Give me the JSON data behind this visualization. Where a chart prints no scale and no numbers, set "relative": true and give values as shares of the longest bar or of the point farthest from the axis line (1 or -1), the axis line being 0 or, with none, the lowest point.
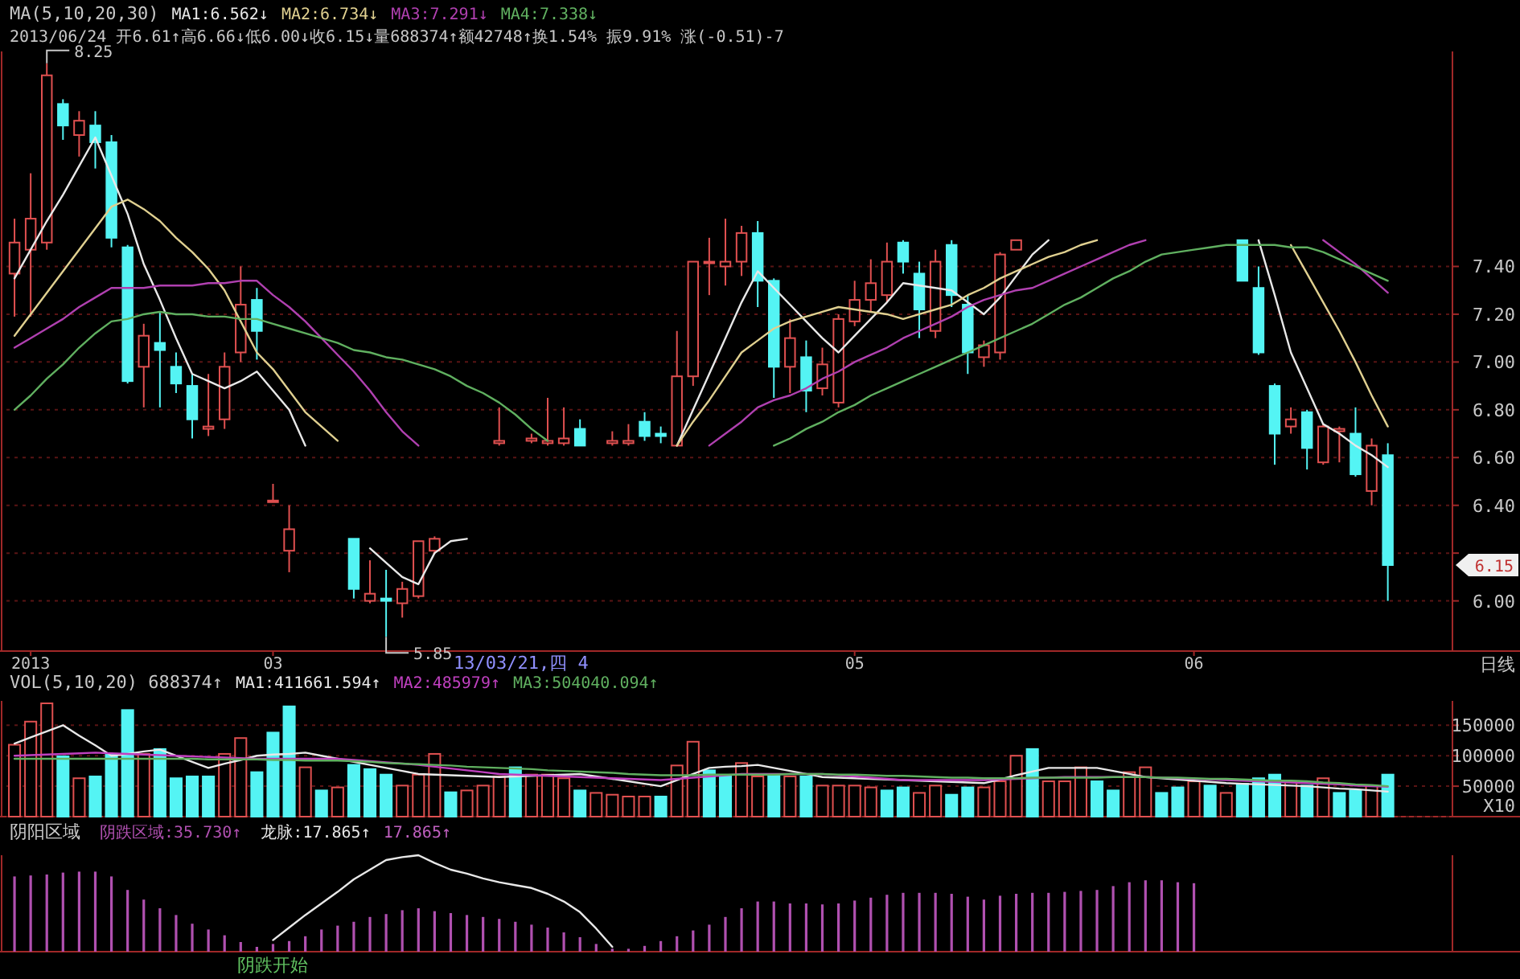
{
  "chart_data": [
    {
      "type": "candlestick",
      "title": "MA(5,10,20,30)",
      "subtitle": "2013/06/24 开6.61↑高6.66↓低6.00↓收6.15↓量688374↑额42748↑换1.54% 振9.91% 涨(-0.51)-7",
      "legend": "top left",
      "grid": "y",
      "categories": [
        null,
        "2013",
        null,
        null,
        null,
        null,
        null,
        null,
        null,
        null,
        null,
        null,
        null,
        null,
        null,
        null,
        "03",
        null,
        null,
        null,
        null,
        null,
        null,
        null,
        null,
        null,
        null,
        null,
        null,
        null,
        null,
        null,
        null,
        null,
        null,
        null,
        null,
        null,
        null,
        null,
        null,
        null,
        null,
        null,
        null,
        null,
        null,
        null,
        null,
        null,
        null,
        null,
        "05",
        null,
        null,
        null,
        null,
        null,
        null,
        null,
        null,
        null,
        null,
        null,
        null,
        null,
        null,
        null,
        null,
        null,
        null,
        null,
        null,
        "06",
        null,
        null,
        null,
        null,
        null,
        null,
        null,
        null,
        null,
        null,
        null,
        null
      ],
      "ohlc": [
        [
          7.37,
          7.6,
          7.19,
          7.5
        ],
        [
          7.47,
          7.79,
          7.19,
          7.6
        ],
        [
          7.5,
          8.25,
          7.47,
          8.2
        ],
        [
          8.08,
          8.1,
          7.93,
          7.99
        ],
        [
          7.95,
          8.05,
          7.86,
          8.01
        ],
        [
          7.99,
          8.05,
          7.81,
          7.92
        ],
        [
          7.92,
          7.95,
          7.48,
          7.52
        ],
        [
          7.48,
          7.49,
          6.91,
          6.92
        ],
        [
          6.98,
          7.16,
          6.81,
          7.11
        ],
        [
          7.08,
          7.21,
          6.81,
          7.05
        ],
        [
          6.98,
          7.04,
          6.87,
          6.91
        ],
        [
          6.9,
          6.95,
          6.68,
          6.76
        ],
        [
          6.72,
          6.95,
          6.69,
          6.73
        ],
        [
          6.76,
          7.04,
          6.72,
          6.98
        ],
        [
          7.04,
          7.4,
          7.0,
          7.24
        ],
        [
          7.26,
          7.31,
          7.01,
          7.13
        ],
        [
          6.42,
          6.49,
          6.42,
          6.42
        ],
        [
          6.21,
          6.4,
          6.12,
          6.3
        ],
        null,
        null,
        null,
        [
          6.26,
          6.26,
          6.01,
          6.05
        ],
        [
          6.0,
          6.17,
          5.99,
          6.03
        ],
        [
          6.01,
          6.13,
          5.85,
          6.0
        ],
        [
          5.99,
          6.08,
          5.93,
          6.05
        ],
        [
          6.02,
          6.25,
          6.01,
          6.25
        ],
        [
          6.21,
          6.27,
          6.2,
          6.26
        ],
        null,
        null,
        null,
        [
          6.66,
          6.81,
          6.65,
          6.67
        ],
        null,
        [
          6.67,
          6.7,
          6.66,
          6.68
        ],
        [
          6.66,
          6.85,
          6.65,
          6.67
        ],
        [
          6.66,
          6.81,
          6.65,
          6.68
        ],
        [
          6.72,
          6.76,
          6.65,
          6.65
        ],
        null,
        [
          6.66,
          6.71,
          6.65,
          6.67
        ],
        [
          6.66,
          6.74,
          6.65,
          6.67
        ],
        [
          6.75,
          6.79,
          6.67,
          6.69
        ],
        [
          6.7,
          6.73,
          6.66,
          6.69
        ],
        [
          6.65,
          7.13,
          6.65,
          6.94
        ],
        [
          6.94,
          7.42,
          6.9,
          7.42
        ],
        [
          7.42,
          7.52,
          7.28,
          7.42
        ],
        [
          7.4,
          7.6,
          7.32,
          7.42
        ],
        [
          7.42,
          7.57,
          7.36,
          7.54
        ],
        [
          7.54,
          7.59,
          7.23,
          7.34
        ],
        [
          7.34,
          7.35,
          6.85,
          6.98
        ],
        [
          6.98,
          7.18,
          6.87,
          7.1
        ],
        [
          7.02,
          7.09,
          6.79,
          6.88
        ],
        [
          6.89,
          7.06,
          6.86,
          6.99
        ],
        [
          6.83,
          7.2,
          6.81,
          7.18
        ],
        [
          7.17,
          7.34,
          7.15,
          7.26
        ],
        [
          7.26,
          7.43,
          7.21,
          7.33
        ],
        [
          7.28,
          7.5,
          7.25,
          7.42
        ],
        [
          7.5,
          7.51,
          7.37,
          7.42
        ],
        [
          7.37,
          7.42,
          7.1,
          7.22
        ],
        [
          7.13,
          7.47,
          7.1,
          7.42
        ],
        [
          7.49,
          7.51,
          7.23,
          7.28
        ],
        [
          7.24,
          7.28,
          6.95,
          7.04
        ],
        [
          7.02,
          7.09,
          6.98,
          7.07
        ],
        [
          7.04,
          7.46,
          7.01,
          7.45
        ],
        [
          7.47,
          7.51,
          7.47,
          7.51
        ],
        null,
        null,
        null,
        null,
        null,
        null,
        null,
        null,
        null,
        null,
        null,
        null,
        null,
        [
          7.51,
          7.51,
          7.34,
          7.34
        ],
        [
          7.31,
          7.4,
          7.03,
          7.04
        ],
        [
          6.9,
          6.91,
          6.57,
          6.7
        ],
        [
          6.73,
          6.81,
          6.7,
          6.76
        ],
        [
          6.79,
          6.8,
          6.55,
          6.64
        ],
        [
          6.58,
          6.74,
          6.57,
          6.73
        ],
        [
          6.71,
          6.73,
          6.58,
          6.72
        ],
        [
          6.7,
          6.81,
          6.52,
          6.53
        ],
        [
          6.46,
          6.68,
          6.4,
          6.65
        ],
        [
          6.61,
          6.66,
          6.0,
          6.15
        ]
      ],
      "colors": [
        "#e05050",
        "#e05050",
        "#e05050",
        "#54f4f4",
        "#e05050",
        "#54f4f4",
        "#54f4f4",
        "#54f4f4",
        "#e05050",
        "#54f4f4",
        "#54f4f4",
        "#54f4f4",
        "#e05050",
        "#e05050",
        "#e05050",
        "#54f4f4",
        "#e05050",
        "#e05050",
        null,
        null,
        null,
        "#54f4f4",
        "#e05050",
        "#54f4f4",
        "#e05050",
        "#e05050",
        "#e05050",
        null,
        null,
        null,
        "#e05050",
        null,
        "#e05050",
        "#e05050",
        "#e05050",
        "#54f4f4",
        null,
        "#e05050",
        "#e05050",
        "#54f4f4",
        "#54f4f4",
        "#e05050",
        "#e05050",
        "#e05050",
        "#e05050",
        "#e05050",
        "#54f4f4",
        "#54f4f4",
        "#e05050",
        "#54f4f4",
        "#e05050",
        "#e05050",
        "#e05050",
        "#e05050",
        "#e05050",
        "#54f4f4",
        "#54f4f4",
        "#e05050",
        "#54f4f4",
        "#54f4f4",
        "#e05050",
        "#e05050",
        "#e05050",
        null,
        null,
        null,
        null,
        null,
        null,
        null,
        null,
        null,
        null,
        null,
        null,
        null,
        "#54f4f4",
        "#54f4f4",
        "#54f4f4",
        "#e05050",
        "#54f4f4",
        "#e05050",
        "#e05050",
        "#54f4f4",
        "#e05050",
        "#54f4f4"
      ],
      "series": [
        {
          "type": "line",
          "name": "MA1:6.562↓",
          "color": "#e8e8e8",
          "values": [
            7.35,
            7.47,
            7.59,
            7.7,
            7.82,
            7.94,
            7.78,
            7.62,
            7.41,
            7.26,
            7.1,
            6.95,
            6.92,
            6.89,
            6.92,
            6.96,
            6.88,
            6.8,
            6.65,
            null,
            null,
            null,
            6.22,
            6.16,
            6.1,
            6.07,
            6.2,
            6.25,
            6.26,
            null,
            null,
            null,
            null,
            null,
            null,
            null,
            null,
            null,
            null,
            null,
            null,
            6.65,
            6.8,
            6.95,
            7.1,
            7.25,
            7.38,
            7.31,
            7.24,
            7.17,
            7.1,
            7.04,
            7.11,
            7.18,
            7.25,
            7.33,
            7.32,
            7.31,
            7.3,
            7.25,
            7.2,
            7.27,
            7.36,
            7.45,
            7.51,
            null,
            null,
            null,
            null,
            null,
            null,
            null,
            null,
            null,
            null,
            null,
            null,
            7.51,
            7.28,
            7.04,
            6.89,
            6.74,
            6.7,
            6.65,
            6.61,
            6.56
          ]
        },
        {
          "type": "line",
          "name": "MA2:6.734↓",
          "color": "#e0d090",
          "values": [
            7.11,
            7.2,
            7.29,
            7.38,
            7.47,
            7.56,
            7.65,
            7.68,
            7.64,
            7.59,
            7.52,
            7.46,
            7.39,
            7.3,
            7.17,
            7.04,
            6.97,
            6.88,
            6.79,
            6.73,
            6.67,
            null,
            null,
            null,
            null,
            null,
            null,
            null,
            null,
            null,
            null,
            null,
            null,
            null,
            null,
            null,
            null,
            null,
            null,
            null,
            null,
            6.65,
            6.75,
            6.84,
            6.94,
            7.04,
            7.09,
            7.14,
            7.17,
            7.19,
            7.21,
            7.23,
            7.22,
            7.21,
            7.2,
            7.18,
            7.2,
            7.22,
            7.24,
            7.28,
            7.31,
            7.35,
            7.38,
            7.41,
            7.44,
            7.46,
            7.49,
            7.51,
            null,
            null,
            null,
            null,
            null,
            null,
            null,
            null,
            null,
            null,
            null,
            7.49,
            7.37,
            7.25,
            7.13,
            7.0,
            6.86,
            6.73
          ]
        },
        {
          "type": "line",
          "name": "MA3:7.291↓",
          "color": "#b040b0",
          "values": [
            7.06,
            7.1,
            7.14,
            7.18,
            7.23,
            7.27,
            7.31,
            7.31,
            7.31,
            7.32,
            7.32,
            7.32,
            7.33,
            7.33,
            7.34,
            7.34,
            7.28,
            7.23,
            7.17,
            7.1,
            7.03,
            6.96,
            6.88,
            6.79,
            6.71,
            6.65,
            null,
            null,
            null,
            null,
            null,
            null,
            null,
            null,
            null,
            null,
            null,
            null,
            null,
            null,
            null,
            null,
            null,
            6.65,
            6.7,
            6.75,
            6.81,
            6.84,
            6.86,
            6.89,
            6.93,
            6.96,
            7.0,
            7.03,
            7.06,
            7.1,
            7.13,
            7.16,
            7.19,
            7.23,
            7.26,
            7.28,
            7.3,
            7.31,
            7.34,
            7.37,
            7.4,
            7.43,
            7.46,
            7.49,
            7.51,
            null,
            null,
            null,
            null,
            null,
            null,
            null,
            null,
            null,
            null,
            7.51,
            7.46,
            7.41,
            7.35,
            7.29
          ]
        },
        {
          "type": "line",
          "name": "MA4:7.338↓",
          "color": "#60b060",
          "values": [
            6.8,
            6.86,
            6.93,
            6.99,
            7.06,
            7.12,
            7.17,
            7.18,
            7.2,
            7.21,
            7.2,
            7.2,
            7.19,
            7.19,
            7.18,
            7.18,
            7.16,
            7.14,
            7.12,
            7.1,
            7.08,
            7.05,
            7.04,
            7.02,
            7.01,
            6.99,
            6.97,
            6.94,
            6.9,
            6.87,
            6.83,
            6.78,
            6.72,
            6.67,
            null,
            null,
            null,
            null,
            null,
            null,
            null,
            null,
            null,
            null,
            null,
            null,
            null,
            6.65,
            6.68,
            6.72,
            6.75,
            6.79,
            6.82,
            6.86,
            6.89,
            6.92,
            6.95,
            6.98,
            7.01,
            7.04,
            7.07,
            7.1,
            7.13,
            7.16,
            7.2,
            7.24,
            7.27,
            7.31,
            7.35,
            7.38,
            7.42,
            7.45,
            7.46,
            7.47,
            7.48,
            7.49,
            7.49,
            7.49,
            7.49,
            7.48,
            7.48,
            7.46,
            7.43,
            7.4,
            7.37,
            7.34
          ]
        }
      ],
      "ylim": [
        5.79,
        8.3
      ],
      "yticks": [
        {
          "value": 6,
          "label": "6.00"
        },
        {
          "value": 6.2,
          "label": null
        },
        {
          "value": 6.4,
          "label": "6.40"
        },
        {
          "value": 6.6,
          "label": "6.60"
        },
        {
          "value": 6.8,
          "label": "6.80"
        },
        {
          "value": 7,
          "label": "7.00"
        },
        {
          "value": 7.2,
          "label": "7.20"
        },
        {
          "value": 7.4,
          "label": "7.40"
        }
      ],
      "annotations": [
        "8.25",
        "5.85",
        "6.15",
        "13/03/21,四 4",
        "日线"
      ]
    },
    {
      "type": "bar",
      "title": "VOL(5,10,20) 688374↑",
      "legend": "top left",
      "grid": "y",
      "tick_labels": "y",
      "categories": [
        null,
        null,
        null,
        null,
        null,
        null,
        null,
        null,
        null,
        null,
        null,
        null,
        null,
        null,
        null,
        null,
        null,
        null,
        null,
        null,
        null,
        null,
        null,
        null,
        null,
        null,
        null,
        null,
        null,
        null,
        null,
        null,
        null,
        null,
        null,
        null,
        null,
        null,
        null,
        null,
        null,
        null,
        null,
        null,
        null,
        null,
        null,
        null,
        null,
        null,
        null,
        null,
        null,
        null,
        null,
        null,
        null,
        null,
        null,
        null,
        null,
        null,
        null,
        null,
        null,
        null,
        null,
        null,
        null,
        null,
        null,
        null,
        null,
        null,
        null,
        null,
        null,
        null,
        null,
        null,
        null,
        null,
        null,
        null,
        null,
        null
      ],
      "values": [
        118000,
        156000,
        186000,
        99000,
        63000,
        66000,
        103000,
        175000,
        103000,
        111000,
        63000,
        66000,
        66000,
        103000,
        129000,
        73000,
        138000,
        181000,
        81000,
        43000,
        48000,
        85000,
        78000,
        69000,
        51000,
        69000,
        103000,
        40000,
        43000,
        51000,
        66000,
        81000,
        69000,
        69000,
        63000,
        43000,
        39000,
        36000,
        33000,
        33000,
        33000,
        84000,
        123000,
        76000,
        66000,
        88000,
        66000,
        69000,
        66000,
        66000,
        51000,
        51000,
        51000,
        48000,
        43000,
        48000,
        39000,
        51000,
        36000,
        48000,
        48000,
        58000,
        100000,
        111000,
        58000,
        58000,
        81000,
        58000,
        43000,
        73000,
        81000,
        39000,
        48000,
        58000,
        51000,
        39000,
        54000,
        63000,
        69000,
        58000,
        51000,
        63000,
        39000,
        43000,
        51000,
        69000
      ],
      "colors": [
        "#e05050",
        "#e05050",
        "#e05050",
        "#54f4f4",
        "#e05050",
        "#54f4f4",
        "#54f4f4",
        "#54f4f4",
        "#e05050",
        "#54f4f4",
        "#54f4f4",
        "#54f4f4",
        "#54f4f4",
        "#e05050",
        "#e05050",
        "#54f4f4",
        "#54f4f4",
        "#54f4f4",
        "#e05050",
        "#54f4f4",
        "#e05050",
        "#54f4f4",
        "#54f4f4",
        "#54f4f4",
        "#e05050",
        "#e05050",
        "#e05050",
        "#54f4f4",
        "#e05050",
        "#e05050",
        "#e05050",
        "#54f4f4",
        "#e05050",
        "#e05050",
        "#e05050",
        "#54f4f4",
        "#e05050",
        "#e05050",
        "#e05050",
        "#e05050",
        "#54f4f4",
        "#e05050",
        "#e05050",
        "#54f4f4",
        "#54f4f4",
        "#e05050",
        "#e05050",
        "#54f4f4",
        "#e05050",
        "#54f4f4",
        "#e05050",
        "#e05050",
        "#e05050",
        "#e05050",
        "#54f4f4",
        "#54f4f4",
        "#e05050",
        "#e05050",
        "#54f4f4",
        "#54f4f4",
        "#e05050",
        "#e05050",
        "#e05050",
        "#54f4f4",
        "#e05050",
        "#e05050",
        "#e05050",
        "#54f4f4",
        "#54f4f4",
        "#e05050",
        "#e05050",
        "#54f4f4",
        "#54f4f4",
        "#e05050",
        "#54f4f4",
        "#e05050",
        "#54f4f4",
        "#54f4f4",
        "#54f4f4",
        "#e05050",
        "#54f4f4",
        "#e05050",
        "#54f4f4",
        "#54f4f4",
        "#e05050",
        "#54f4f4"
      ],
      "series": [
        {
          "type": "line",
          "name": "MA1:411661.594↑",
          "color": "#e8e8e8",
          "values": [
            120000,
            130000,
            140000,
            150000,
            133000,
            117000,
            100000,
            103000,
            107000,
            110000,
            100000,
            90000,
            80000,
            87000,
            93000,
            100000,
            102000,
            103000,
            105000,
            100000,
            95000,
            90000,
            85000,
            80000,
            75000,
            70000,
            69000,
            68000,
            67000,
            66000,
            65000,
            66000,
            67000,
            68000,
            69000,
            70000,
            66000,
            62000,
            58000,
            54000,
            50000,
            60000,
            70000,
            80000,
            82000,
            83000,
            85000,
            80000,
            75000,
            70000,
            65000,
            64000,
            63000,
            62000,
            61000,
            60000,
            59000,
            58000,
            57000,
            56000,
            55000,
            61000,
            68000,
            74000,
            80000,
            80000,
            80000,
            80000,
            75000,
            70000,
            65000,
            63000,
            61000,
            59000,
            57000,
            55000,
            54000,
            53000,
            52000,
            51000,
            50000,
            48000,
            46000,
            45000,
            43000,
            41000
          ]
        },
        {
          "type": "line",
          "name": "MA2:485979↑",
          "color": "#c040c0",
          "values": [
            100000,
            101000,
            102000,
            103000,
            104000,
            105000,
            104000,
            103000,
            102000,
            101000,
            100000,
            99000,
            98000,
            97000,
            96000,
            95000,
            95000,
            95000,
            95000,
            95000,
            95000,
            93000,
            91000,
            89000,
            87000,
            85000,
            82000,
            79000,
            76000,
            73000,
            70000,
            69000,
            68000,
            67000,
            66000,
            65000,
            64000,
            63000,
            62000,
            61000,
            60000,
            62000,
            64000,
            66000,
            68000,
            70000,
            70000,
            70000,
            70000,
            70000,
            70000,
            68000,
            66000,
            64000,
            62000,
            60000,
            60000,
            60000,
            60000,
            60000,
            60000,
            61000,
            62000,
            63000,
            64000,
            65000,
            65000,
            65000,
            65000,
            65000,
            65000,
            64000,
            63000,
            62000,
            61000,
            60000,
            59000,
            58000,
            57000,
            56000,
            55000,
            54000,
            53000,
            51000,
            50000,
            49000
          ]
        },
        {
          "type": "line",
          "name": "MA3:504040.094↑",
          "color": "#60b060",
          "values": [
            95000,
            95000,
            95000,
            95000,
            95000,
            95000,
            95000,
            95000,
            95000,
            95000,
            95000,
            95000,
            94000,
            94000,
            94000,
            94000,
            93000,
            93000,
            92000,
            92000,
            92000,
            91000,
            90000,
            88000,
            87000,
            86000,
            85000,
            84000,
            82000,
            81000,
            80000,
            79000,
            78000,
            76000,
            75000,
            74000,
            73000,
            72000,
            70000,
            69000,
            68000,
            68000,
            68000,
            69000,
            69000,
            69000,
            69000,
            69000,
            70000,
            70000,
            70000,
            69000,
            69000,
            68000,
            67000,
            67000,
            66000,
            65000,
            64000,
            64000,
            63000,
            63000,
            63000,
            64000,
            64000,
            64000,
            64000,
            64000,
            65000,
            65000,
            65000,
            64000,
            64000,
            63000,
            62000,
            62000,
            61000,
            60000,
            59000,
            59000,
            58000,
            56000,
            55000,
            53000,
            52000,
            50000
          ]
        }
      ],
      "ylim": [
        0,
        190000
      ],
      "yticks": [
        {
          "value": 0,
          "label": "X10"
        },
        50000,
        100000,
        150000
      ]
    },
    {
      "type": "bar",
      "title": "阴阳区域",
      "relative": true,
      "tick_labels": false,
      "categories": [
        null,
        null,
        null,
        null,
        null,
        null,
        null,
        null,
        null,
        null,
        null,
        null,
        null,
        null,
        null,
        null,
        null,
        null,
        null,
        null,
        null,
        null,
        null,
        null,
        null,
        null,
        null,
        null,
        null,
        null,
        null,
        null,
        null,
        null,
        null,
        null,
        null,
        null,
        null,
        null,
        null,
        null,
        null,
        null,
        null,
        null,
        null,
        null,
        null,
        null,
        null,
        null,
        null,
        null,
        null,
        null,
        null,
        null,
        null,
        null,
        null,
        null,
        null,
        null,
        null,
        null,
        null,
        null,
        null,
        null,
        null,
        null,
        null,
        null,
        null,
        null,
        null,
        null,
        null,
        null,
        null,
        null,
        null,
        null,
        null,
        null
      ],
      "series": [
        {
          "type": "bar",
          "name": "阴跌区域:35.730↑",
          "color": "#b050b0",
          "values": [
            0.78,
            0.79,
            0.8,
            0.82,
            0.83,
            0.83,
            0.78,
            0.64,
            0.54,
            0.45,
            0.38,
            0.29,
            0.23,
            0.17,
            0.1,
            0.05,
            0.08,
            0.11,
            0.16,
            0.23,
            0.27,
            0.31,
            0.36,
            0.39,
            0.43,
            0.45,
            0.42,
            0.4,
            0.38,
            0.36,
            0.34,
            0.31,
            0.28,
            0.25,
            0.2,
            0.15,
            0.08,
            0.03,
            0.03,
            0.06,
            0.11,
            0.16,
            0.22,
            0.28,
            0.36,
            0.45,
            0.52,
            0.52,
            0.5,
            0.5,
            0.49,
            0.5,
            0.53,
            0.56,
            0.59,
            0.61,
            0.61,
            0.61,
            0.6,
            0.57,
            0.54,
            0.58,
            0.6,
            0.61,
            0.61,
            0.62,
            0.63,
            0.64,
            0.68,
            0.72,
            0.74,
            0.74,
            0.72,
            0.71,
            null,
            null,
            null,
            null,
            null,
            null,
            null,
            null,
            null,
            null,
            null,
            null
          ]
        },
        {
          "type": "line",
          "name": "龙脉:17.865↑",
          "color": "#e8e8e8",
          "values": [
            null,
            null,
            null,
            null,
            null,
            null,
            null,
            null,
            null,
            null,
            null,
            null,
            null,
            null,
            null,
            null,
            0.12,
            0.25,
            0.38,
            0.5,
            0.62,
            0.75,
            0.85,
            0.95,
            0.98,
            1,
            0.92,
            0.85,
            0.81,
            0.76,
            0.72,
            0.69,
            0.66,
            0.6,
            0.52,
            0.41,
            0.24,
            0.05,
            null,
            null,
            null,
            null,
            null,
            null,
            null,
            null,
            null,
            null,
            null,
            null,
            null,
            null,
            null,
            null,
            null,
            null,
            null,
            null,
            null,
            null,
            null,
            null,
            null,
            null,
            null,
            null,
            null,
            null,
            null,
            null,
            null,
            null,
            null,
            null,
            null,
            null,
            null,
            null,
            null,
            null,
            null,
            null,
            null,
            null,
            null,
            null
          ]
        }
      ],
      "annotations": [
        "17.865↑",
        "阴跌开始"
      ]
    }
  ]
}
